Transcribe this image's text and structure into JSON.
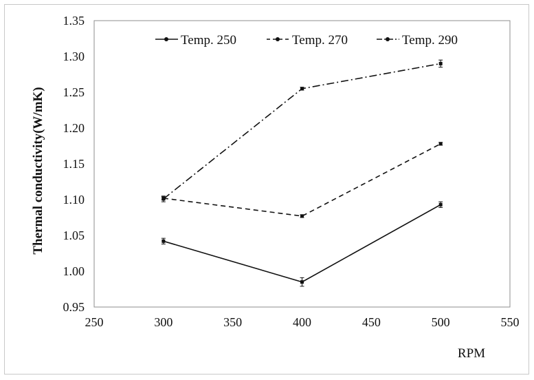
{
  "chart_data": {
    "type": "line",
    "xlabel": "RPM",
    "ylabel": "Thermal conductivity(W/mK)",
    "xlim": [
      250,
      550
    ],
    "ylim": [
      0.95,
      1.35
    ],
    "x_ticks": [
      "250",
      "300",
      "350",
      "400",
      "450",
      "500",
      "550"
    ],
    "y_ticks": [
      "0.95",
      "1.00",
      "1.05",
      "1.10",
      "1.15",
      "1.20",
      "1.25",
      "1.30",
      "1.35"
    ],
    "grid": false,
    "legend_position": "top",
    "series": [
      {
        "name": "Temp. 250",
        "x": [
          300,
          400,
          500
        ],
        "values": [
          1.042,
          0.985,
          1.093
        ],
        "error": [
          0.004,
          0.006,
          0.004
        ],
        "line_style": "solid"
      },
      {
        "name": "Temp. 270",
        "x": [
          300,
          400,
          500
        ],
        "values": [
          1.102,
          1.077,
          1.178
        ],
        "error": [
          0.002,
          0.002,
          0.002
        ],
        "line_style": "dashed"
      },
      {
        "name": "Temp. 290",
        "x": [
          300,
          400,
          500
        ],
        "values": [
          1.101,
          1.255,
          1.29
        ],
        "error": [
          0.004,
          0.002,
          0.005
        ],
        "line_style": "dash-dot"
      }
    ]
  }
}
